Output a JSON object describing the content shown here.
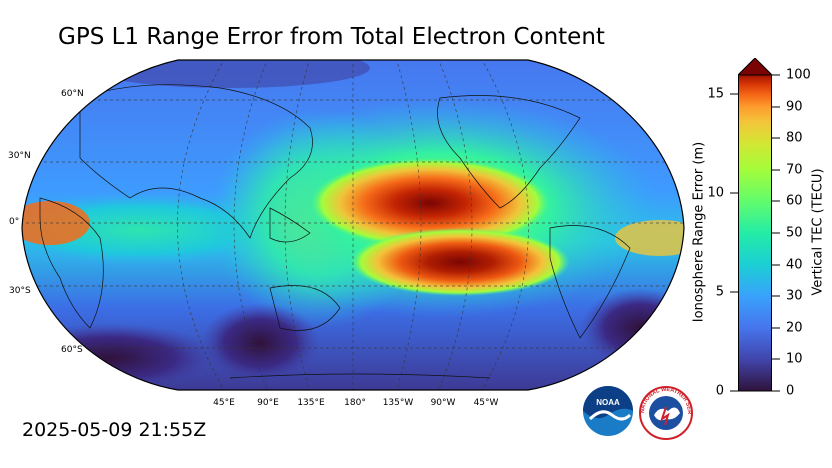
{
  "title": "GPS L1 Range Error from Total Electron Content",
  "timestamp": "2025-05-09 21:55Z",
  "map": {
    "projection": "Robinson",
    "central_longitude": 180,
    "lat_labels": [
      "60°N",
      "30°N",
      "0°",
      "30°S",
      "60°S"
    ],
    "lon_labels": [
      "45°E",
      "90°E",
      "135°E",
      "180°",
      "135°W",
      "90°W",
      "45°W"
    ],
    "gridlines": true
  },
  "colorbar": {
    "right_label": "Vertical TEC (TECU)",
    "right_ticks": [
      "0",
      "10",
      "20",
      "30",
      "40",
      "50",
      "60",
      "70",
      "80",
      "90",
      "100"
    ],
    "left_label": "Ionosphere Range Error (m)",
    "left_ticks": [
      "0",
      "5",
      "10",
      "15"
    ],
    "colormap": "turbo",
    "extend": "max"
  },
  "logos": {
    "noaa": "NOAA",
    "nws": "NATIONAL WEATHER SERVICE"
  }
}
